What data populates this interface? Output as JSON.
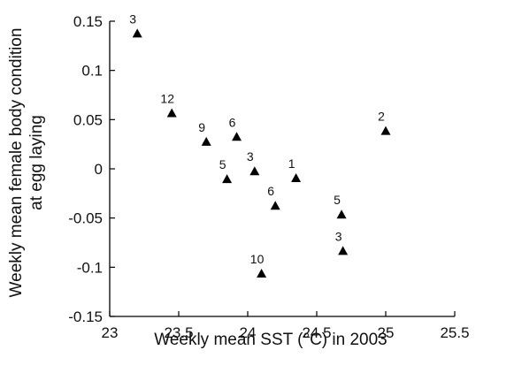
{
  "chart_data": {
    "type": "scatter",
    "xlabel": "Weekly mean SST (°C) in 2003",
    "ylabel_line1": "Weekly mean female body condition",
    "ylabel_line2": "at egg laying",
    "xlim": [
      23,
      25.5
    ],
    "ylim": [
      -0.15,
      0.15
    ],
    "x_ticks": [
      23,
      23.5,
      24,
      24.5,
      25,
      25.5
    ],
    "x_tick_labels": [
      "23",
      "23.5",
      "24",
      "24.5",
      "25",
      "25.5"
    ],
    "y_ticks": [
      0.15,
      0.1,
      0.05,
      0,
      -0.05,
      -0.1,
      -0.15
    ],
    "y_tick_labels": [
      "0.15",
      "0.1",
      "0.05",
      "0",
      "-0.05",
      "-0.1",
      "-0.15"
    ],
    "grid": false,
    "marker": "triangle",
    "marker_color": "#000000",
    "points": [
      {
        "x": 23.2,
        "y": 0.138,
        "label": "3"
      },
      {
        "x": 23.45,
        "y": 0.057,
        "label": "12"
      },
      {
        "x": 23.7,
        "y": 0.028,
        "label": "9"
      },
      {
        "x": 23.92,
        "y": 0.033,
        "label": "6"
      },
      {
        "x": 23.85,
        "y": -0.01,
        "label": "5"
      },
      {
        "x": 24.05,
        "y": -0.002,
        "label": "3"
      },
      {
        "x": 24.2,
        "y": -0.037,
        "label": "6"
      },
      {
        "x": 24.35,
        "y": -0.009,
        "label": "1"
      },
      {
        "x": 24.1,
        "y": -0.106,
        "label": "10"
      },
      {
        "x": 24.68,
        "y": -0.046,
        "label": "5"
      },
      {
        "x": 24.69,
        "y": -0.083,
        "label": "3"
      },
      {
        "x": 25.0,
        "y": 0.039,
        "label": "2"
      }
    ]
  }
}
